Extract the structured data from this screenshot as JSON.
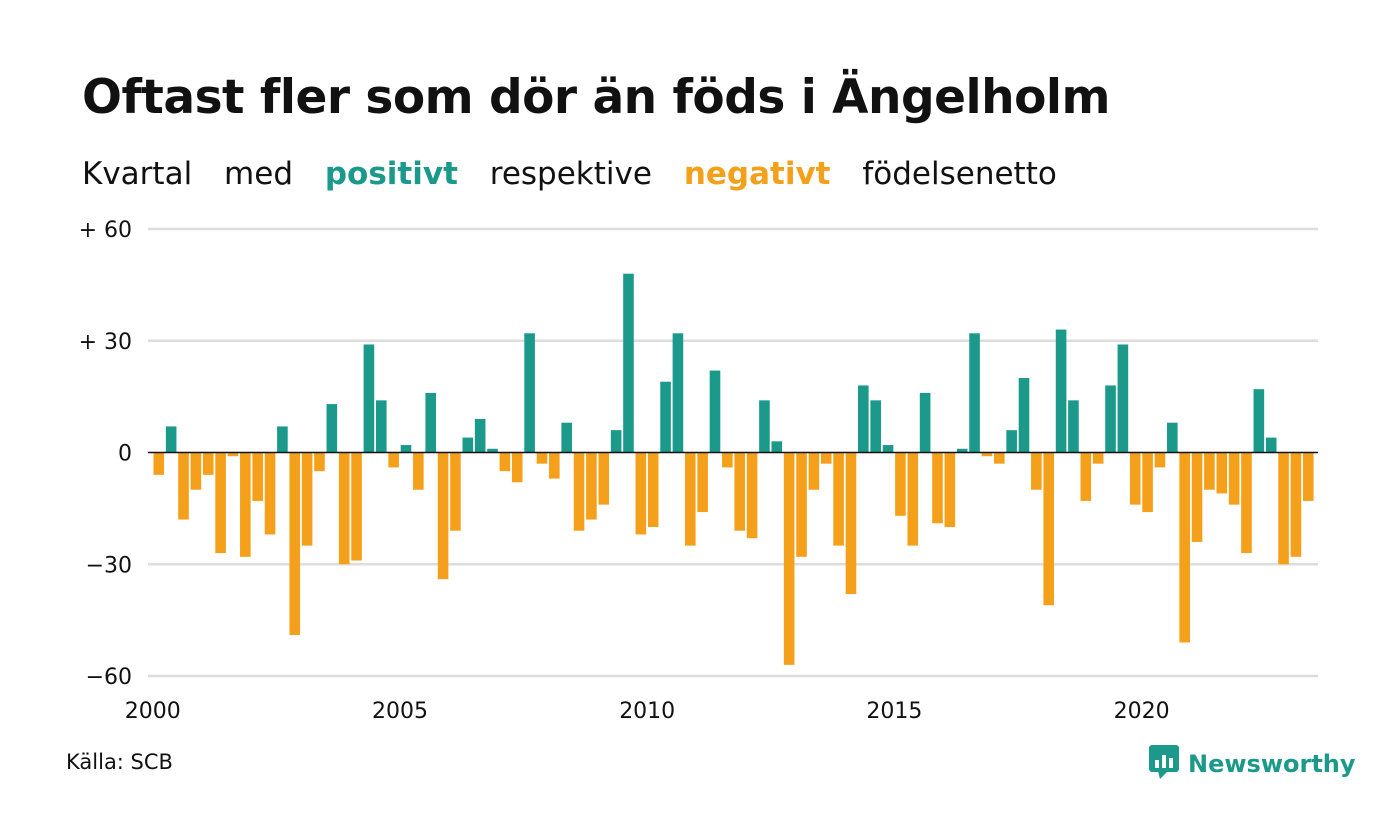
{
  "title": "Oftast fler som dör än föds i Ängelholm",
  "subtitle": {
    "part1": "Kvartal",
    "part2": "med",
    "positive_word": "positivt",
    "part3": "respektive",
    "negative_word": "negativt",
    "part4": "födelsenetto"
  },
  "source": "Källa: SCB",
  "brand": {
    "name": "Newsworthy",
    "icon": "newsworthy-logo-icon"
  },
  "colors": {
    "positive": "#1b998b",
    "negative": "#f5a01a",
    "grid": "#dddddd",
    "baseline": "#111111",
    "text": "#111111"
  },
  "chart_data": {
    "type": "bar",
    "x_start_year": 2000,
    "x_unit": "quarter",
    "x_ticks": [
      {
        "value": 2000,
        "label": "2000"
      },
      {
        "value": 2005,
        "label": "2005"
      },
      {
        "value": 2010,
        "label": "2010"
      },
      {
        "value": 2015,
        "label": "2015"
      },
      {
        "value": 2020,
        "label": "2020"
      }
    ],
    "y_ticks": [
      {
        "value": 60,
        "label": "+ 60"
      },
      {
        "value": 30,
        "label": "+ 30"
      },
      {
        "value": 0,
        "label": "0"
      },
      {
        "value": -30,
        "label": "−30"
      },
      {
        "value": -60,
        "label": "−60"
      }
    ],
    "ylim": [
      -60,
      60
    ],
    "grid": true,
    "values": [
      -6,
      7,
      -18,
      -10,
      -6,
      -27,
      -1,
      -28,
      -13,
      -22,
      7,
      -49,
      -25,
      -5,
      13,
      -30,
      -29,
      29,
      14,
      -4,
      2,
      -10,
      16,
      -34,
      -21,
      4,
      9,
      1,
      -5,
      -8,
      32,
      -3,
      -7,
      8,
      -21,
      -18,
      -14,
      6,
      48,
      -22,
      -20,
      19,
      32,
      -25,
      -16,
      22,
      -4,
      -21,
      -23,
      14,
      3,
      -57,
      -28,
      -10,
      -3,
      -25,
      -38,
      18,
      14,
      2,
      -17,
      -25,
      16,
      -19,
      -20,
      1,
      32,
      -1,
      -3,
      6,
      20,
      -10,
      -41,
      33,
      14,
      -13,
      -3,
      18,
      29,
      -14,
      -16,
      -4,
      8,
      -51,
      -24,
      -10,
      -11,
      -14,
      -27,
      17,
      4,
      -30,
      -28,
      -13
    ]
  }
}
